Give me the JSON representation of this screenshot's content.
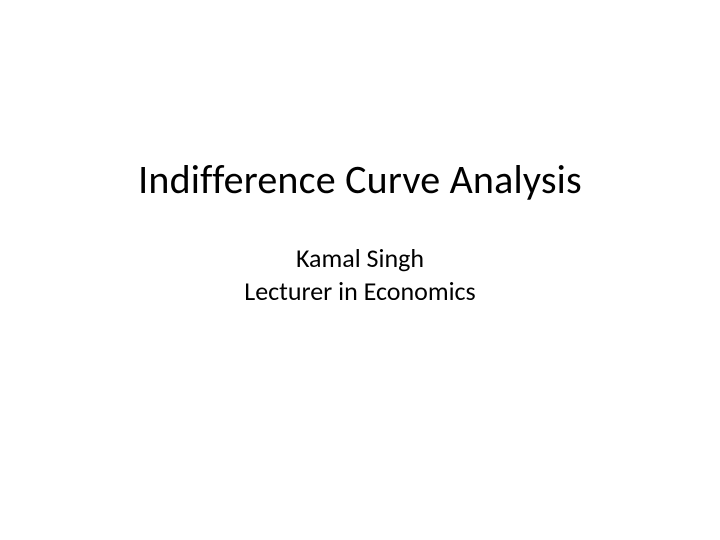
{
  "slide": {
    "title": "Indifference Curve Analysis",
    "author": "Kamal Singh",
    "role": "Lecturer in Economics",
    "background_color": "#ffffff",
    "text_color": "#000000",
    "title_fontsize": 40,
    "subtitle_fontsize": 26,
    "font_family": "Calibri"
  }
}
